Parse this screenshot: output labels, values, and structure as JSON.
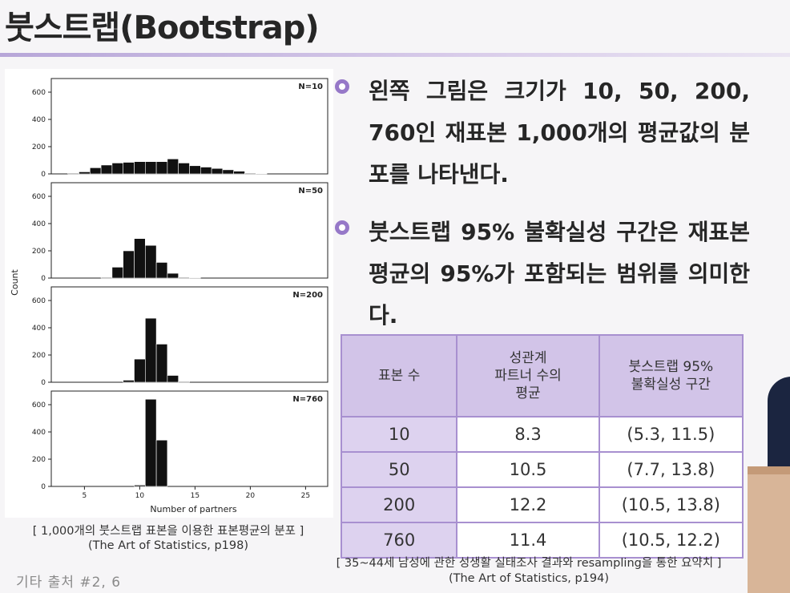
{
  "title": "붓스트랩(Bootstrap)",
  "bullets": [
    "왼쪽 그림은 크기가 10, 50, 200, 760인 재표본 1,000개의 평균값의 분포를 나타낸다.",
    "붓스트랩 95% 불확실성 구간은 재표본 평균의 95%가 포함되는 범위를 의미한다."
  ],
  "chart_caption": {
    "line1": "[ 1,000개의 붓스트랩 표본을 이용한 표본평균의 분포 ]",
    "line2": "(The Art of Statistics, p198)"
  },
  "table": {
    "headers": [
      "표본 수",
      "성관계\n파트너 수의\n평균",
      "붓스트랩 95%\n불확실성 구간"
    ],
    "rows": [
      [
        "10",
        "8.3",
        "(5.3, 11.5)"
      ],
      [
        "50",
        "10.5",
        "(7.7, 13.8)"
      ],
      [
        "200",
        "12.2",
        "(10.5, 13.8)"
      ],
      [
        "760",
        "11.4",
        "(10.5, 12.2)"
      ]
    ]
  },
  "table_caption": {
    "line1": "[ 35~44세 남성에 관한 성생활 실태조사 결과와 resampling을 통한 요약치 ]",
    "line2": "(The Art of Statistics, p194)"
  },
  "footer_note": "기타 출처 #2, 6",
  "colors": {
    "accent": "#9678c8",
    "table_header": "#d2c4e8",
    "table_border": "#a890d0",
    "bar": "#111111"
  },
  "chart_data": {
    "type": "bar",
    "ylabel": "Count",
    "xlabel": "Number of partners",
    "xlim": [
      2,
      27
    ],
    "ylim": [
      0,
      700
    ],
    "x_ticks": [
      5,
      10,
      15,
      20,
      25
    ],
    "y_ticks": [
      0,
      200,
      400,
      600
    ],
    "bin_width": 1,
    "panels": [
      {
        "label": "N=10",
        "bins_start": [
          3.5,
          4.5,
          5.5,
          6.5,
          7.5,
          8.5,
          9.5,
          10.5,
          11.5,
          12.5,
          13.5,
          14.5,
          15.5,
          16.5,
          17.5,
          18.5,
          19.5,
          20.5
        ],
        "values": [
          5,
          15,
          45,
          65,
          80,
          85,
          90,
          90,
          90,
          110,
          80,
          60,
          50,
          40,
          30,
          20,
          5,
          2
        ]
      },
      {
        "label": "N=50",
        "bins_start": [
          6.5,
          7.5,
          8.5,
          9.5,
          10.5,
          11.5,
          12.5,
          13.5,
          14.5
        ],
        "values": [
          5,
          80,
          200,
          290,
          240,
          115,
          35,
          5,
          1
        ]
      },
      {
        "label": "N=200",
        "bins_start": [
          8.5,
          9.5,
          10.5,
          11.5,
          12.5,
          13.5
        ],
        "values": [
          15,
          170,
          470,
          280,
          50,
          5
        ]
      },
      {
        "label": "N=760",
        "bins_start": [
          9.5,
          10.5,
          11.5
        ],
        "values": [
          10,
          640,
          340
        ]
      }
    ]
  }
}
